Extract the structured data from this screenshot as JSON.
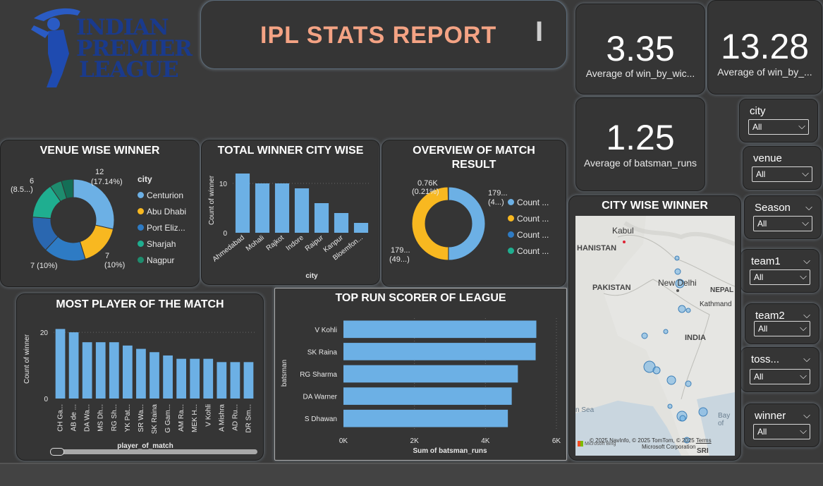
{
  "header": {
    "logo_lines": [
      "INDIAN",
      "PREMIER",
      "LEAGUE"
    ],
    "title": "IPL STATS REPORT",
    "cursor": "I"
  },
  "kpis": [
    {
      "value": "3.35",
      "label": "Average of win_by_wic..."
    },
    {
      "value": "13.28",
      "label": "Average of win_by_..."
    },
    {
      "value": "1.25",
      "label": "Average of batsman_runs"
    }
  ],
  "slicers": [
    {
      "title": "city",
      "value": "All",
      "has_chevron": false
    },
    {
      "title": "venue",
      "value": "All",
      "has_chevron": false
    },
    {
      "title": "Season",
      "value": "All",
      "has_chevron": true
    },
    {
      "title": "team1",
      "value": "All",
      "has_chevron": true
    },
    {
      "title": "team2",
      "value": "All",
      "has_chevron": true
    },
    {
      "title": "toss...",
      "value": "All",
      "has_chevron": true
    },
    {
      "title": "winner",
      "value": "All",
      "has_chevron": true
    }
  ],
  "colors": {
    "bar": "#6cb0e5",
    "title_accent": "#f4a384",
    "logo": "#1a3a8c"
  },
  "chart_data": [
    {
      "id": "venue",
      "type": "pie",
      "title": "VENUE WISE WINNER",
      "legend_title": "city",
      "legend": [
        {
          "name": "Centurion",
          "color": "#6cb0e5"
        },
        {
          "name": "Abu Dhabi",
          "color": "#f8b820"
        },
        {
          "name": "Port Eliz...",
          "color": "#2e7bc4"
        },
        {
          "name": "Sharjah",
          "color": "#1fae90"
        },
        {
          "name": "Nagpur",
          "color": "#1e8c6e"
        }
      ],
      "slices": [
        {
          "value": 12,
          "color": "#6cb0e5"
        },
        {
          "value": 7,
          "color": "#f8b820"
        },
        {
          "value": 7,
          "color": "#2e7bc4"
        },
        {
          "value": 6,
          "color": "#2a67b0"
        },
        {
          "value": 6,
          "color": "#1fae90"
        },
        {
          "value": 2,
          "color": "#1e8c6e"
        },
        {
          "value": 2,
          "color": "#146e56"
        }
      ],
      "labels": [
        "12",
        "(17.14%)",
        "7",
        "(10%)",
        "7 (10%)",
        "6",
        "(8.5...)"
      ]
    },
    {
      "id": "city",
      "type": "bar",
      "title": "TOTAL WINNER CITY WISE",
      "xlabel": "city",
      "ylabel": "Count of winner",
      "categories": [
        "Ahmedabad",
        "Mohali",
        "Rajkot",
        "Indore",
        "Raipur",
        "Kanpur",
        "Bloemfon..."
      ],
      "values": [
        12,
        10,
        10,
        9,
        6,
        4,
        2
      ],
      "ylim": [
        0,
        13
      ],
      "yticks": [
        "0",
        "10"
      ]
    },
    {
      "id": "overview",
      "type": "pie",
      "title": "OVERVIEW OF MATCH RESULT",
      "slices": [
        {
          "value": 179.6,
          "color": "#6cb0e5"
        },
        {
          "value": 178.4,
          "color": "#f8b820"
        },
        {
          "value": 0.76,
          "color": "#2e7bc4"
        }
      ],
      "labels": [
        "0.76K",
        "(0.21%)",
        "179...",
        "(4...)",
        "179...",
        "(49...)"
      ],
      "legend": [
        {
          "name": "Count ...",
          "color": "#6cb0e5"
        },
        {
          "name": "Count ...",
          "color": "#f8b820"
        },
        {
          "name": "Count ...",
          "color": "#2e7bc4"
        },
        {
          "name": "Count ...",
          "color": "#1fae90"
        }
      ]
    },
    {
      "id": "pom",
      "type": "bar",
      "title": "MOST PLAYER OF THE MATCH",
      "xlabel": "player_of_match",
      "ylabel": "Count of winner",
      "categories": [
        "CH Ga...",
        "AB de ...",
        "DA Wa...",
        "MS Dh...",
        "RG Sh...",
        "YK Pat...",
        "SR Wa...",
        "SK Raina",
        "G Gam...",
        "AM Ra...",
        "MEK H...",
        "V Kohli",
        "A Mishra",
        "AD Ru...",
        "DR Sm..."
      ],
      "values": [
        21,
        20,
        17,
        17,
        17,
        16,
        15,
        14,
        13,
        12,
        12,
        12,
        11,
        11,
        11
      ],
      "ylim": [
        0,
        23
      ],
      "yticks": [
        "0",
        "20"
      ]
    },
    {
      "id": "runs",
      "type": "bar",
      "title": "TOP RUN SCORER OF LEAGUE",
      "xlabel": "Sum of batsman_runs",
      "ylabel": "batsman",
      "categories": [
        "V Kohli",
        "SK Raina",
        "RG Sharma",
        "DA Warner",
        "S Dhawan"
      ],
      "values": [
        5434,
        5415,
        4914,
        4741,
        4632
      ],
      "xlim": [
        0,
        6000
      ],
      "xticks": [
        "0K",
        "2K",
        "4K",
        "6K"
      ]
    }
  ],
  "map": {
    "title": "CITY WISE WINNER",
    "labels": [
      "Kabul",
      "HANISTAN",
      "PAKISTAN",
      "New Delhi",
      "NEPAL",
      "Kathmand",
      "INDIA",
      "n Sea",
      "Bay of",
      "SRI LANKA"
    ],
    "attribution": "© 2025 NavInfo, © 2025 TomTom, © 2025",
    "terms": "Terms",
    "corp": "Microsoft Corporation",
    "bing": "Microsoft Bing"
  }
}
